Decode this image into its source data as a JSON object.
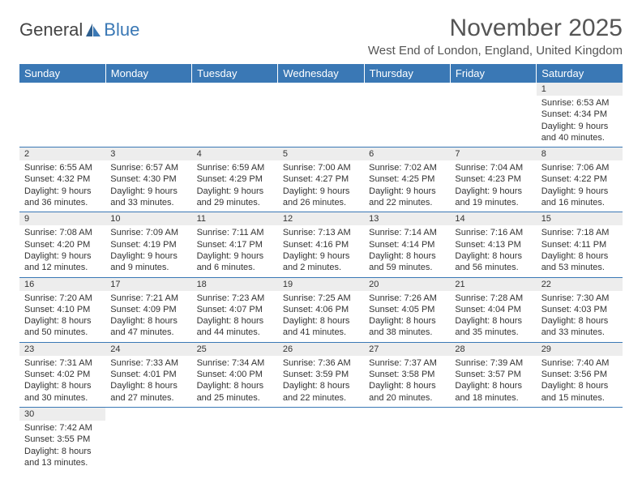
{
  "logo": {
    "text1": "General",
    "text2": "Blue"
  },
  "title": "November 2025",
  "location": "West End of London, England, United Kingdom",
  "colors": {
    "header_bg": "#3a78b5",
    "daynum_bg": "#ededed",
    "text": "#333333",
    "rule": "#3a78b5"
  },
  "fonts": {
    "title_size": 30,
    "location_size": 15,
    "header_size": 13,
    "cell_size": 11
  },
  "weekdays": [
    "Sunday",
    "Monday",
    "Tuesday",
    "Wednesday",
    "Thursday",
    "Friday",
    "Saturday"
  ],
  "weeks": [
    [
      null,
      null,
      null,
      null,
      null,
      null,
      {
        "n": "1",
        "sr": "6:53 AM",
        "ss": "4:34 PM",
        "dl1": "9 hours",
        "dl2": "and 40 minutes."
      }
    ],
    [
      {
        "n": "2",
        "sr": "6:55 AM",
        "ss": "4:32 PM",
        "dl1": "9 hours",
        "dl2": "and 36 minutes."
      },
      {
        "n": "3",
        "sr": "6:57 AM",
        "ss": "4:30 PM",
        "dl1": "9 hours",
        "dl2": "and 33 minutes."
      },
      {
        "n": "4",
        "sr": "6:59 AM",
        "ss": "4:29 PM",
        "dl1": "9 hours",
        "dl2": "and 29 minutes."
      },
      {
        "n": "5",
        "sr": "7:00 AM",
        "ss": "4:27 PM",
        "dl1": "9 hours",
        "dl2": "and 26 minutes."
      },
      {
        "n": "6",
        "sr": "7:02 AM",
        "ss": "4:25 PM",
        "dl1": "9 hours",
        "dl2": "and 22 minutes."
      },
      {
        "n": "7",
        "sr": "7:04 AM",
        "ss": "4:23 PM",
        "dl1": "9 hours",
        "dl2": "and 19 minutes."
      },
      {
        "n": "8",
        "sr": "7:06 AM",
        "ss": "4:22 PM",
        "dl1": "9 hours",
        "dl2": "and 16 minutes."
      }
    ],
    [
      {
        "n": "9",
        "sr": "7:08 AM",
        "ss": "4:20 PM",
        "dl1": "9 hours",
        "dl2": "and 12 minutes."
      },
      {
        "n": "10",
        "sr": "7:09 AM",
        "ss": "4:19 PM",
        "dl1": "9 hours",
        "dl2": "and 9 minutes."
      },
      {
        "n": "11",
        "sr": "7:11 AM",
        "ss": "4:17 PM",
        "dl1": "9 hours",
        "dl2": "and 6 minutes."
      },
      {
        "n": "12",
        "sr": "7:13 AM",
        "ss": "4:16 PM",
        "dl1": "9 hours",
        "dl2": "and 2 minutes."
      },
      {
        "n": "13",
        "sr": "7:14 AM",
        "ss": "4:14 PM",
        "dl1": "8 hours",
        "dl2": "and 59 minutes."
      },
      {
        "n": "14",
        "sr": "7:16 AM",
        "ss": "4:13 PM",
        "dl1": "8 hours",
        "dl2": "and 56 minutes."
      },
      {
        "n": "15",
        "sr": "7:18 AM",
        "ss": "4:11 PM",
        "dl1": "8 hours",
        "dl2": "and 53 minutes."
      }
    ],
    [
      {
        "n": "16",
        "sr": "7:20 AM",
        "ss": "4:10 PM",
        "dl1": "8 hours",
        "dl2": "and 50 minutes."
      },
      {
        "n": "17",
        "sr": "7:21 AM",
        "ss": "4:09 PM",
        "dl1": "8 hours",
        "dl2": "and 47 minutes."
      },
      {
        "n": "18",
        "sr": "7:23 AM",
        "ss": "4:07 PM",
        "dl1": "8 hours",
        "dl2": "and 44 minutes."
      },
      {
        "n": "19",
        "sr": "7:25 AM",
        "ss": "4:06 PM",
        "dl1": "8 hours",
        "dl2": "and 41 minutes."
      },
      {
        "n": "20",
        "sr": "7:26 AM",
        "ss": "4:05 PM",
        "dl1": "8 hours",
        "dl2": "and 38 minutes."
      },
      {
        "n": "21",
        "sr": "7:28 AM",
        "ss": "4:04 PM",
        "dl1": "8 hours",
        "dl2": "and 35 minutes."
      },
      {
        "n": "22",
        "sr": "7:30 AM",
        "ss": "4:03 PM",
        "dl1": "8 hours",
        "dl2": "and 33 minutes."
      }
    ],
    [
      {
        "n": "23",
        "sr": "7:31 AM",
        "ss": "4:02 PM",
        "dl1": "8 hours",
        "dl2": "and 30 minutes."
      },
      {
        "n": "24",
        "sr": "7:33 AM",
        "ss": "4:01 PM",
        "dl1": "8 hours",
        "dl2": "and 27 minutes."
      },
      {
        "n": "25",
        "sr": "7:34 AM",
        "ss": "4:00 PM",
        "dl1": "8 hours",
        "dl2": "and 25 minutes."
      },
      {
        "n": "26",
        "sr": "7:36 AM",
        "ss": "3:59 PM",
        "dl1": "8 hours",
        "dl2": "and 22 minutes."
      },
      {
        "n": "27",
        "sr": "7:37 AM",
        "ss": "3:58 PM",
        "dl1": "8 hours",
        "dl2": "and 20 minutes."
      },
      {
        "n": "28",
        "sr": "7:39 AM",
        "ss": "3:57 PM",
        "dl1": "8 hours",
        "dl2": "and 18 minutes."
      },
      {
        "n": "29",
        "sr": "7:40 AM",
        "ss": "3:56 PM",
        "dl1": "8 hours",
        "dl2": "and 15 minutes."
      }
    ],
    [
      {
        "n": "30",
        "sr": "7:42 AM",
        "ss": "3:55 PM",
        "dl1": "8 hours",
        "dl2": "and 13 minutes."
      },
      null,
      null,
      null,
      null,
      null,
      null
    ]
  ],
  "labels": {
    "sunrise": "Sunrise: ",
    "sunset": "Sunset: ",
    "daylight": "Daylight: "
  }
}
